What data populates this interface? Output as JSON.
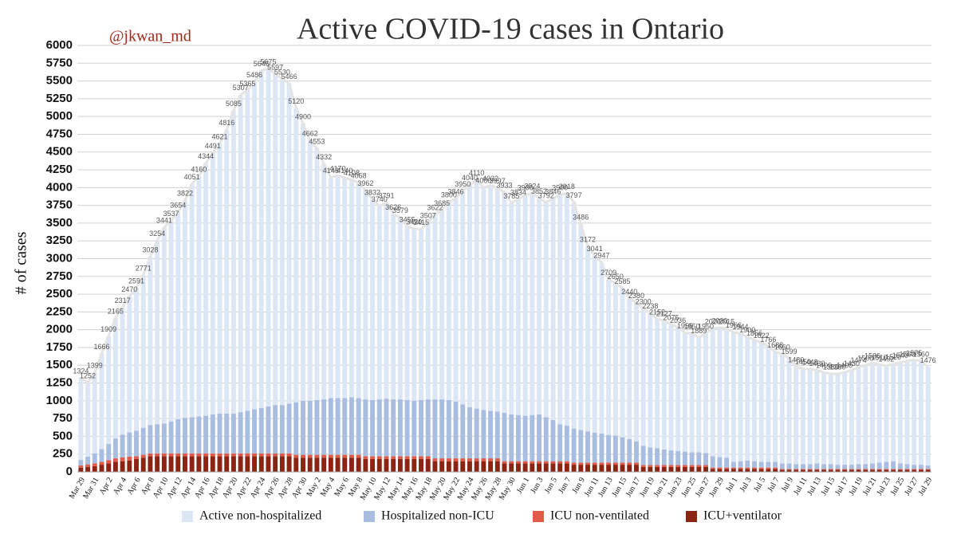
{
  "chart_data": {
    "type": "stacked_bar",
    "title": "Active COVID-19 cases in Ontario",
    "annotation": "@jkwan_md",
    "y_label": "# of cases",
    "categories": [
      "Mar 29",
      null,
      "Mar 31",
      null,
      "Apr 2",
      null,
      "Apr 4",
      null,
      "Apr 6",
      null,
      "Apr 8",
      null,
      "Apr 10",
      null,
      "Apr 12",
      null,
      "Apr 14",
      null,
      "Apr 16",
      null,
      "Apr 18",
      null,
      "Apr 20",
      null,
      "Apr 22",
      null,
      "Apr 24",
      null,
      "Apr 26",
      null,
      "Apr 28",
      null,
      "Apr 30",
      null,
      "May 2",
      null,
      "May 4",
      null,
      "May 6",
      null,
      "May 8",
      null,
      "May 10",
      null,
      "May 12",
      null,
      "May 14",
      null,
      "May 16",
      null,
      "May 18",
      null,
      "May 20",
      null,
      "May 22",
      null,
      "May 24",
      null,
      "May 26",
      null,
      "May 28",
      null,
      "May 30",
      null,
      "Jun 1",
      null,
      "Jun 3",
      null,
      "Jun 5",
      null,
      "Jun 7",
      null,
      "Jun 9",
      null,
      "Jun 11",
      null,
      "Jun 13",
      null,
      "Jun 15",
      null,
      "Jun 17",
      null,
      "Jun 19",
      null,
      "Jun 21",
      null,
      "Jun 23",
      null,
      "Jun 25",
      null,
      "Jun 27",
      null,
      "Jun 29",
      null,
      "Jul 1",
      null,
      "Jul 3",
      null,
      "Jul 5",
      null,
      "Jul 7",
      null,
      "Jul 9",
      null,
      "Jul 11",
      null,
      "Jul 13",
      null,
      "Jul 15",
      null,
      "Jul 17",
      null,
      "Jul 19",
      null,
      "Jul 21",
      null,
      "Jul 23",
      null,
      "Jul 25",
      null,
      "Jul 27",
      null,
      "Jul 29"
    ],
    "series": [
      {
        "name": "Active non-hospitalized",
        "color": "#dce6f5",
        "values": [
          1154,
          1037,
          1139,
          1346,
          1514,
          1695,
          1792,
          1915,
          2011,
          2151,
          2368,
          2584,
          2761,
          2827,
          2914,
          3062,
          3281,
          3380,
          3554,
          3681,
          3801,
          3996,
          4265,
          4467,
          4505,
          4606,
          4746,
          4755,
          4657,
          4590,
          4506,
          4140,
          3900,
          3662,
          3543,
          3312,
          3103,
          3130,
          3100,
          3058,
          3028,
          2942,
          2822,
          2720,
          2761,
          2606,
          2559,
          2445,
          2420,
          2405,
          2487,
          2602,
          2665,
          2790,
          2856,
          3000,
          3130,
          3220,
          3130,
          3172,
          3147,
          3103,
          2975,
          3034,
          3110,
          3124,
          3042,
          3022,
          3116,
          3230,
          3268,
          3187,
          2896,
          2602,
          2491,
          2407,
          2189,
          2140,
          2095,
          1980,
          1950,
          1935,
          1893,
          1817,
          1812,
          1770,
          1741,
          1670,
          1675,
          1614,
          1685,
          1800,
          1820,
          1815,
          1826,
          1794,
          1740,
          1706,
          1682,
          1626,
          1548,
          1540,
          1479,
          1370,
          1340,
          1338,
          1310,
          1290,
          1270,
          1280,
          1300,
          1330,
          1364,
          1390,
          1416,
          1380,
          1352,
          1370,
          1420,
          1450,
          1475,
          1460,
          1386
        ]
      },
      {
        "name": "Hospitalized non-ICU",
        "color": "#a9bde0",
        "values": [
          80,
          110,
          140,
          180,
          230,
          280,
          320,
          340,
          360,
          380,
          400,
          410,
          420,
          450,
          480,
          500,
          510,
          520,
          530,
          550,
          560,
          560,
          560,
          580,
          600,
          620,
          640,
          660,
          680,
          680,
          700,
          740,
          760,
          760,
          770,
          780,
          800,
          800,
          800,
          810,
          800,
          800,
          790,
          800,
          810,
          800,
          800,
          790,
          780,
          790,
          800,
          830,
          830,
          820,
          800,
          760,
          720,
          700,
          680,
          670,
          660,
          680,
          660,
          650,
          640,
          650,
          660,
          620,
          580,
          520,
          500,
          480,
          460,
          440,
          420,
          410,
          390,
          380,
          360,
          330,
          300,
          270,
          250,
          240,
          220,
          210,
          200,
          190,
          180,
          180,
          170,
          160,
          150,
          140,
          80,
          90,
          100,
          90,
          80,
          80,
          80,
          80,
          80,
          70,
          70,
          70,
          80,
          70,
          70,
          60,
          60,
          60,
          70,
          70,
          80,
          90,
          100,
          110,
          80,
          70,
          60,
          60,
          50
        ]
      },
      {
        "name": "ICU non-ventilated",
        "color": "#e05a47",
        "values": [
          30,
          35,
          40,
          40,
          45,
          50,
          55,
          55,
          40,
          40,
          40,
          40,
          40,
          40,
          40,
          40,
          40,
          40,
          40,
          40,
          40,
          40,
          40,
          40,
          40,
          40,
          40,
          40,
          40,
          40,
          40,
          40,
          40,
          40,
          40,
          40,
          40,
          40,
          40,
          40,
          40,
          40,
          40,
          40,
          40,
          40,
          40,
          40,
          40,
          40,
          40,
          40,
          40,
          40,
          40,
          40,
          40,
          40,
          40,
          40,
          40,
          30,
          30,
          30,
          30,
          30,
          30,
          30,
          30,
          30,
          30,
          30,
          30,
          30,
          30,
          30,
          30,
          30,
          30,
          30,
          30,
          25,
          25,
          25,
          25,
          25,
          25,
          25,
          25,
          25,
          25,
          20,
          20,
          20,
          20,
          20,
          20,
          20,
          20,
          20,
          20,
          10,
          10,
          10,
          10,
          10,
          10,
          10,
          10,
          10,
          10,
          10,
          10,
          10,
          10,
          10,
          10,
          10,
          10,
          10,
          10,
          10,
          10
        ]
      },
      {
        "name": "ICU+ventilator",
        "color": "#8b2413",
        "values": [
          60,
          70,
          80,
          100,
          120,
          140,
          150,
          160,
          180,
          200,
          220,
          220,
          220,
          220,
          220,
          220,
          220,
          220,
          220,
          220,
          220,
          220,
          220,
          220,
          220,
          220,
          220,
          220,
          220,
          220,
          220,
          200,
          200,
          200,
          200,
          200,
          200,
          200,
          200,
          200,
          200,
          180,
          180,
          180,
          180,
          180,
          180,
          180,
          180,
          180,
          180,
          150,
          150,
          150,
          150,
          150,
          150,
          150,
          150,
          150,
          150,
          120,
          120,
          120,
          120,
          120,
          120,
          120,
          120,
          120,
          120,
          100,
          100,
          100,
          100,
          100,
          100,
          100,
          100,
          100,
          100,
          70,
          70,
          70,
          70,
          70,
          70,
          70,
          70,
          70,
          70,
          40,
          40,
          40,
          40,
          40,
          40,
          40,
          40,
          40,
          40,
          30,
          30,
          30,
          30,
          30,
          30,
          30,
          30,
          30,
          30,
          30,
          30,
          30,
          30,
          30,
          30,
          30,
          30,
          30,
          30,
          30,
          30
        ]
      }
    ],
    "total_labels": [
      1324,
      1252,
      1399,
      1666,
      1909,
      2165,
      2317,
      2470,
      2591,
      2771,
      3028,
      3254,
      3441,
      3537,
      3654,
      3822,
      4051,
      4160,
      4344,
      4491,
      4621,
      4816,
      5085,
      5307,
      5365,
      5486,
      5646,
      5675,
      5597,
      5530,
      5466,
      5120,
      4900,
      4662,
      4553,
      4332,
      4143,
      4170,
      4140,
      4108,
      4068,
      3962,
      3832,
      3740,
      3791,
      3626,
      3579,
      3455,
      3420,
      3415,
      3507,
      3622,
      3685,
      3800,
      3846,
      3950,
      4040,
      4110,
      4000,
      4032,
      3997,
      3933,
      3785,
      3834,
      3900,
      3924,
      3852,
      3792,
      3846,
      3900,
      3918,
      3797,
      3486,
      3172,
      3041,
      2947,
      2709,
      2650,
      2585,
      2440,
      2380,
      2300,
      2238,
      2152,
      2127,
      2075,
      2036,
      1955,
      1950,
      1889,
      1950,
      2020,
      2030,
      2015,
      1966,
      1944,
      1900,
      1856,
      1822,
      1766,
      1688,
      1660,
      1599,
      1480,
      1450,
      1448,
      1430,
      1400,
      1380,
      1380,
      1400,
      1430,
      1474,
      1500,
      1536,
      1510,
      1492,
      1520,
      1540,
      1560,
      1575,
      1560,
      1476
    ],
    "ylim": [
      0,
      6000
    ],
    "yticks": [
      0,
      250,
      500,
      750,
      1000,
      1250,
      1500,
      1750,
      2000,
      2250,
      2500,
      2750,
      3000,
      3250,
      3500,
      3750,
      4000,
      4250,
      4500,
      4750,
      5000,
      5250,
      5500,
      5750,
      6000
    ],
    "grid": true,
    "legend": "bottom"
  }
}
